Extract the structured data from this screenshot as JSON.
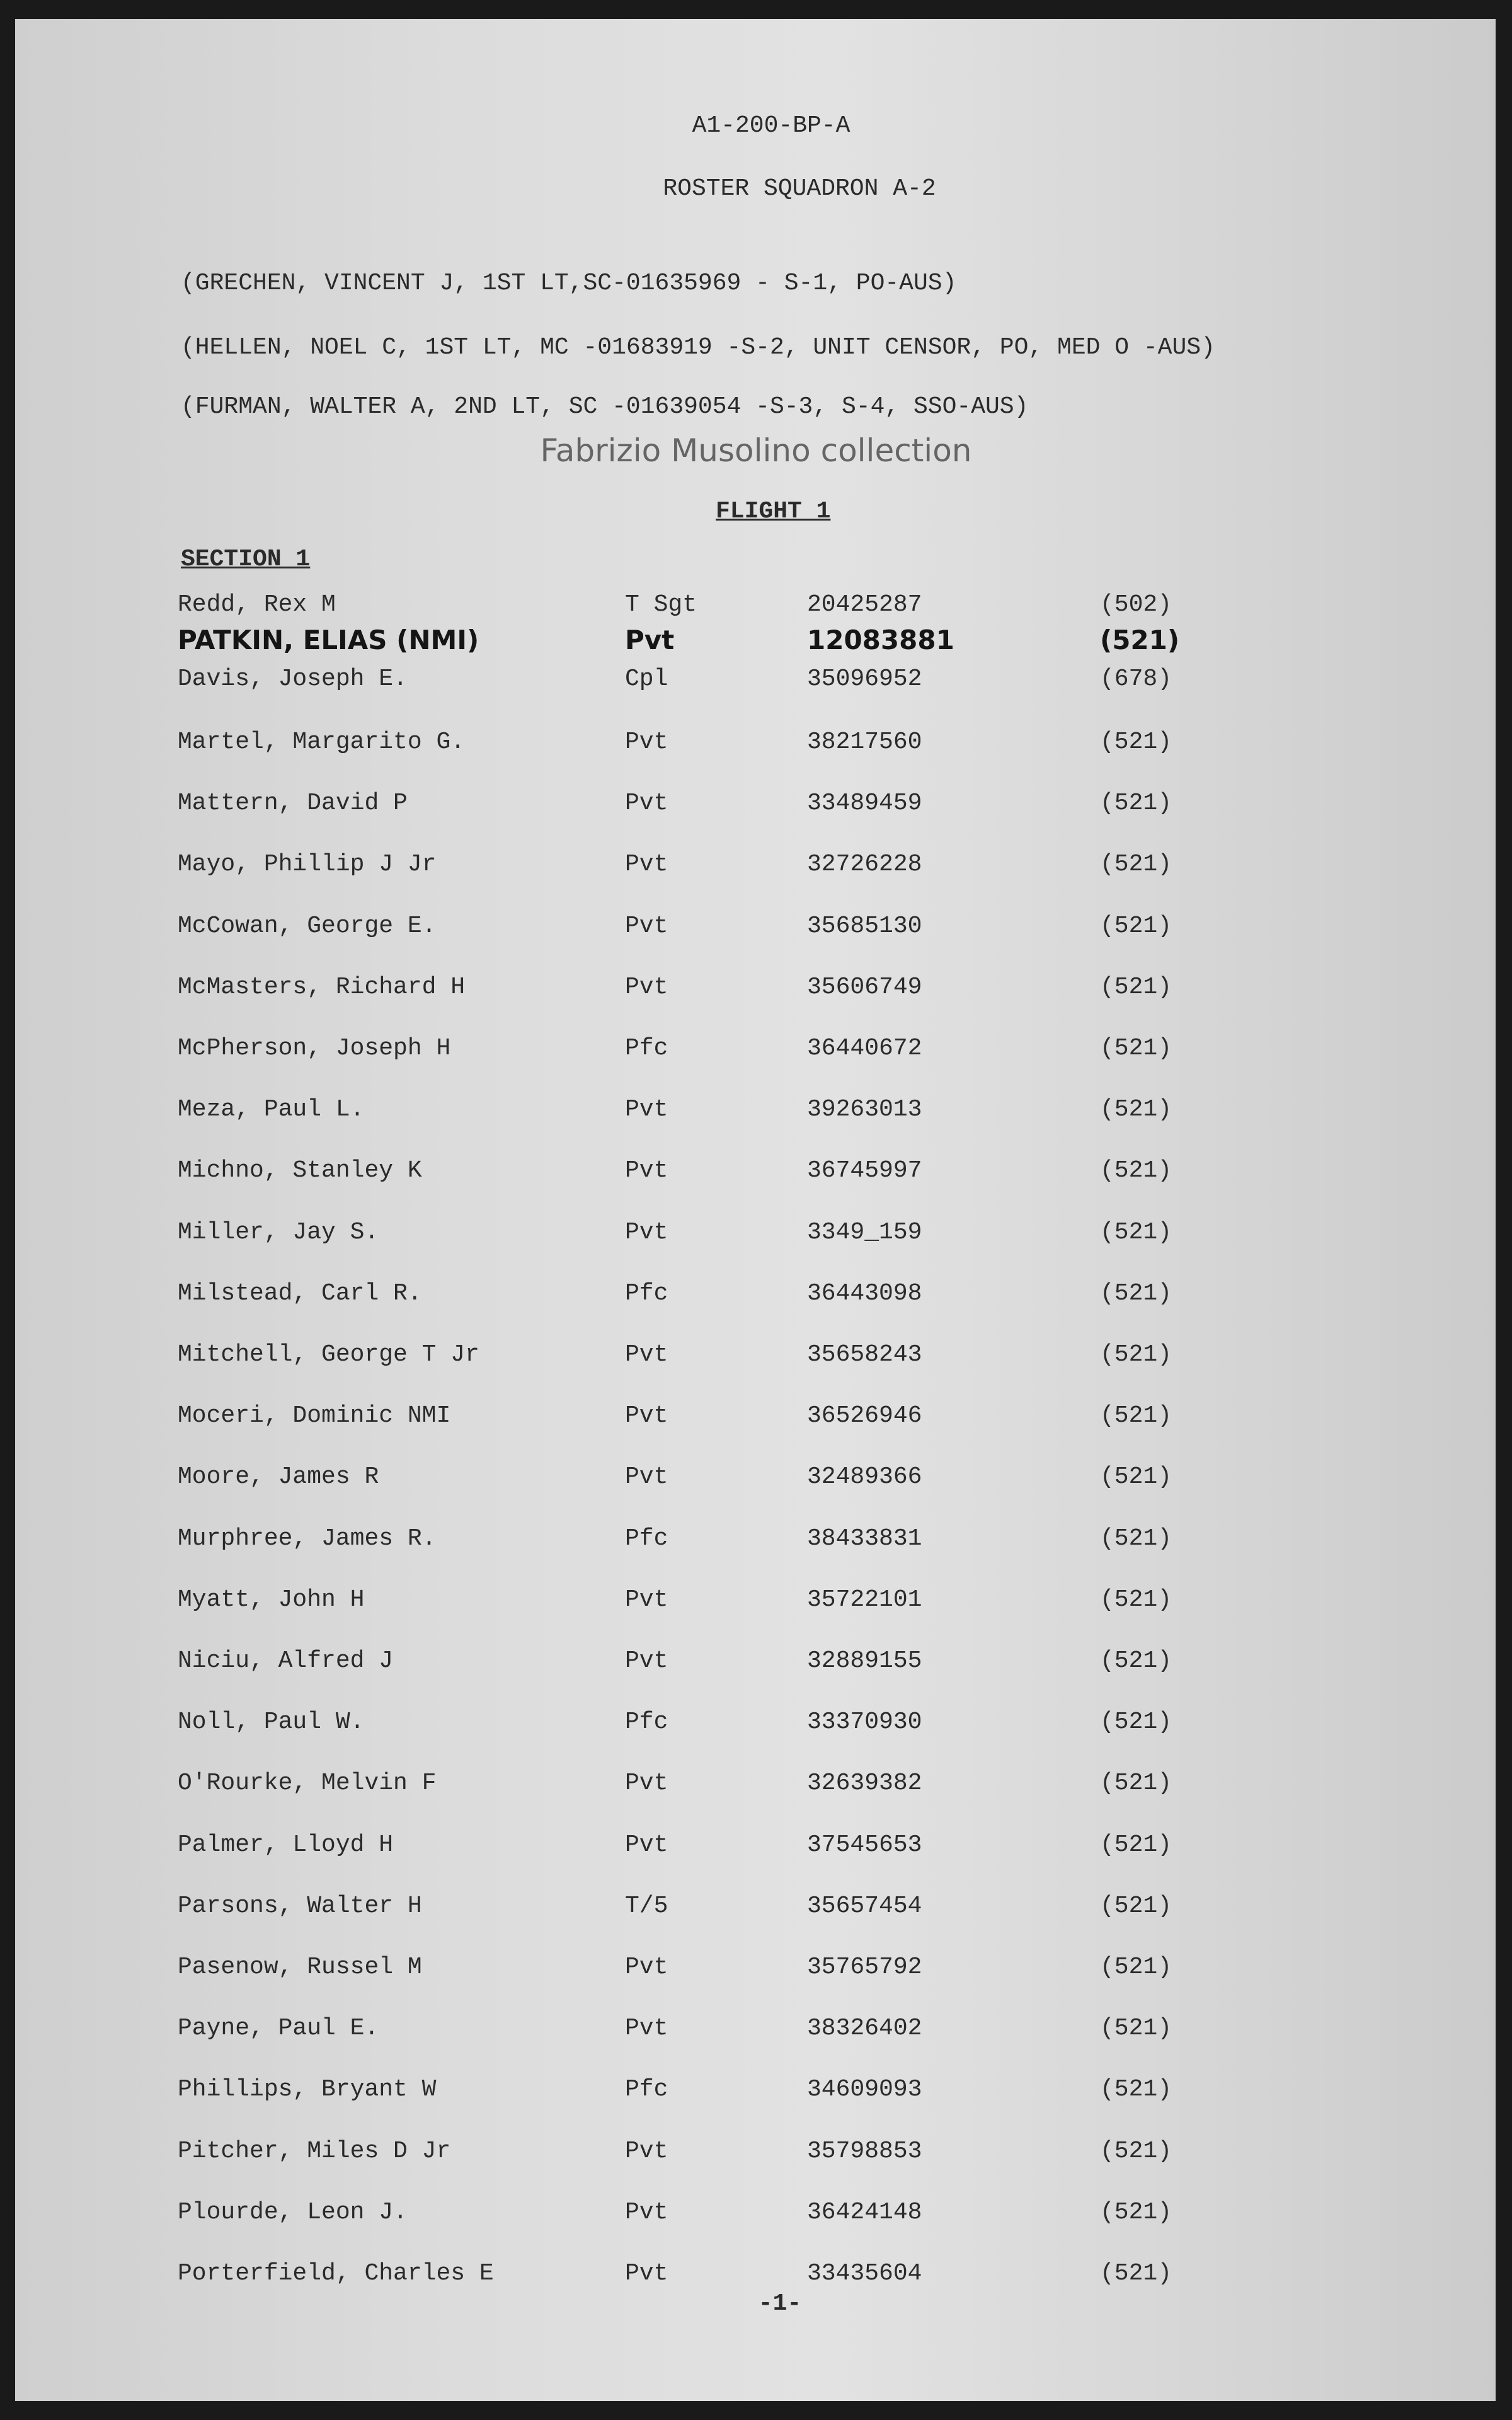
{
  "document": {
    "file_code": "A1-200-BP-A",
    "title": "ROSTER SQUADRON A-2",
    "officers": [
      "(GRECHEN, VINCENT J, 1ST LT,SC-01635969 - S-1, PO-AUS)",
      "(HELLEN, NOEL C, 1ST LT, MC -01683919 -S-2, UNIT CENSOR, PO, MED O -AUS)",
      "(FURMAN, WALTER A, 2ND LT, SC -01639054 -S-3, S-4, SSO-AUS)"
    ],
    "flight": "FLIGHT 1",
    "section": "SECTION 1",
    "roster": [
      {
        "name": "Redd, Rex M",
        "rank": "T Sgt",
        "serial": "20425287",
        "code": "(502)"
      },
      {
        "name": "PATKIN, ELIAS (NMI)",
        "rank": "Pvt",
        "serial": "12083881",
        "code": "(521)",
        "handwritten": true
      },
      {
        "name": "Davis, Joseph E.",
        "rank": "Cpl",
        "serial": "35096952",
        "code": "(678)"
      },
      {
        "name": "Martel, Margarito G.",
        "rank": "Pvt",
        "serial": "38217560",
        "code": "(521)"
      },
      {
        "name": "Mattern, David P",
        "rank": "Pvt",
        "serial": "33489459",
        "code": "(521)"
      },
      {
        "name": "Mayo, Phillip J Jr",
        "rank": "Pvt",
        "serial": "32726228",
        "code": "(521)"
      },
      {
        "name": "McCowan, George E.",
        "rank": "Pvt",
        "serial": "35685130",
        "code": "(521)"
      },
      {
        "name": "McMasters, Richard H",
        "rank": "Pvt",
        "serial": "35606749",
        "code": "(521)"
      },
      {
        "name": "McPherson, Joseph H",
        "rank": "Pfc",
        "serial": "36440672",
        "code": "(521)"
      },
      {
        "name": "Meza, Paul L.",
        "rank": "Pvt",
        "serial": "39263013",
        "code": "(521)"
      },
      {
        "name": "Michno, Stanley K",
        "rank": "Pvt",
        "serial": "36745997",
        "code": "(521)"
      },
      {
        "name": "Miller, Jay S.",
        "rank": "Pvt",
        "serial": "3349_159",
        "code": "(521)"
      },
      {
        "name": "Milstead, Carl R.",
        "rank": "Pfc",
        "serial": "36443098",
        "code": "(521)"
      },
      {
        "name": "Mitchell, George T Jr",
        "rank": "Pvt",
        "serial": "35658243",
        "code": "(521)"
      },
      {
        "name": "Moceri, Dominic NMI",
        "rank": "Pvt",
        "serial": "36526946",
        "code": "(521)"
      },
      {
        "name": "Moore, James R",
        "rank": "Pvt",
        "serial": "32489366",
        "code": "(521)"
      },
      {
        "name": "Murphree, James R.",
        "rank": "Pfc",
        "serial": "38433831",
        "code": "(521)"
      },
      {
        "name": "Myatt, John H",
        "rank": "Pvt",
        "serial": "35722101",
        "code": "(521)"
      },
      {
        "name": "Niciu, Alfred J",
        "rank": "Pvt",
        "serial": "32889155",
        "code": "(521)"
      },
      {
        "name": "Noll, Paul W.",
        "rank": "Pfc",
        "serial": "33370930",
        "code": "(521)"
      },
      {
        "name": "O'Rourke, Melvin F",
        "rank": "Pvt",
        "serial": "32639382",
        "code": "(521)"
      },
      {
        "name": "Palmer, Lloyd H",
        "rank": "Pvt",
        "serial": "37545653",
        "code": "(521)"
      },
      {
        "name": "Parsons, Walter H",
        "rank": "T/5",
        "serial": "35657454",
        "code": "(521)"
      },
      {
        "name": "Pasenow, Russel M",
        "rank": "Pvt",
        "serial": "35765792",
        "code": "(521)"
      },
      {
        "name": "Payne, Paul E.",
        "rank": "Pvt",
        "serial": "38326402",
        "code": "(521)"
      },
      {
        "name": "Phillips, Bryant W",
        "rank": "Pfc",
        "serial": "34609093",
        "code": "(521)"
      },
      {
        "name": "Pitcher, Miles D Jr",
        "rank": "Pvt",
        "serial": "35798853",
        "code": "(521)"
      },
      {
        "name": "Plourde, Leon J.",
        "rank": "Pvt",
        "serial": "36424148",
        "code": "(521)"
      },
      {
        "name": "Porterfield, Charles E",
        "rank": "Pvt",
        "serial": "33435604",
        "code": "(521)"
      }
    ],
    "page_number": "-1-",
    "watermark": "Fabrizio Musolino collection"
  }
}
